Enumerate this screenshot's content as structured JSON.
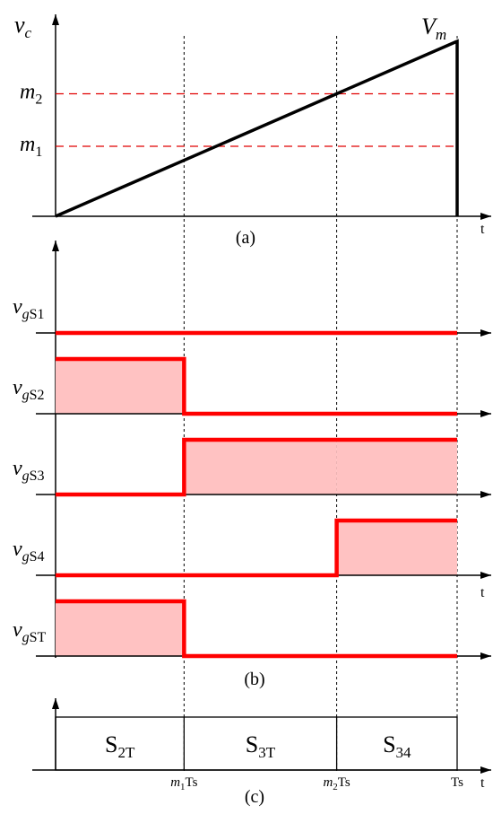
{
  "colors": {
    "axis": "#000000",
    "signal": "#ff0000",
    "fill": "#ffc2c2",
    "dashed_level": "#e00000"
  },
  "panel_a": {
    "caption": "(a)",
    "y_label_main": "v",
    "y_label_sub": "c",
    "t_label": "t",
    "peak_label_main": "V",
    "peak_label_sub": "m",
    "levels": [
      {
        "main": "m",
        "sub": "2",
        "value": 0.7
      },
      {
        "main": "m",
        "sub": "1",
        "value": 0.4
      }
    ]
  },
  "panel_b": {
    "caption": "(b)",
    "t_label": "t",
    "signals": [
      {
        "main": "v",
        "sub_g": "g",
        "sub": "S1",
        "states": [
          0,
          0,
          0
        ]
      },
      {
        "main": "v",
        "sub_g": "g",
        "sub": "S2",
        "states": [
          1,
          0,
          0
        ]
      },
      {
        "main": "v",
        "sub_g": "g",
        "sub": "S3",
        "states": [
          0,
          1,
          1
        ]
      },
      {
        "main": "v",
        "sub_g": "g",
        "sub": "S4",
        "states": [
          0,
          0,
          1
        ]
      },
      {
        "main": "v",
        "sub_g": "g",
        "sub": "ST",
        "states": [
          1,
          0,
          0
        ]
      }
    ]
  },
  "panel_c": {
    "caption": "(c)",
    "t_label": "t",
    "intervals": [
      {
        "main": "S",
        "sub": "2T"
      },
      {
        "main": "S",
        "sub": "3T"
      },
      {
        "main": "S",
        "sub": "34"
      }
    ],
    "ticks": [
      {
        "main": "m",
        "sub": "1",
        "tail": "Ts",
        "position": 0.32
      },
      {
        "main": "m",
        "sub": "2",
        "tail": "Ts",
        "position": 0.7
      },
      {
        "main": "",
        "sub": "",
        "tail": "Ts",
        "position": 1.0
      }
    ]
  }
}
